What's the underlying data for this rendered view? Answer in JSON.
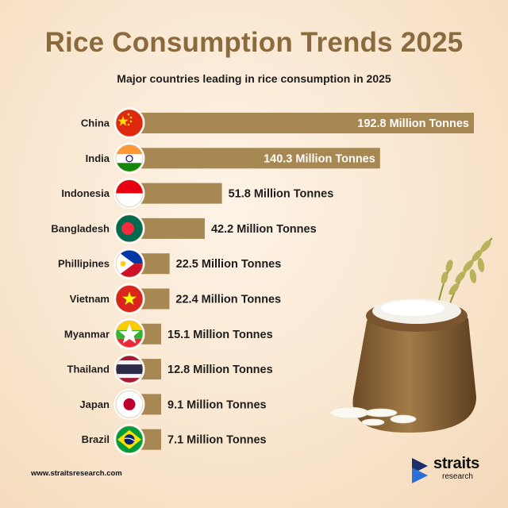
{
  "title": "Rice Consumption Trends 2025",
  "subtitle": "Major countries leading in rice consumption in 2025",
  "footer": {
    "url": "www.straitsresearch.com",
    "brand_name": "straits",
    "brand_sub": "research"
  },
  "colors": {
    "bar": "#a78752",
    "title": "#8b6b3e",
    "value_inside": "#ffffff",
    "value_outside": "#1d1d1d",
    "background": "#f9e6cf"
  },
  "chart_data": {
    "type": "bar",
    "orientation": "horizontal",
    "title": "Rice Consumption Trends 2025",
    "subtitle": "Major countries leading in rice consumption in 2025",
    "unit": "Million Tonnes",
    "categories": [
      "China",
      "India",
      "Indonesia",
      "Bangladesh",
      "Phillipines",
      "Vietnam",
      "Myanmar",
      "Thailand",
      "Japan",
      "Brazil"
    ],
    "values": [
      192.8,
      140.3,
      51.8,
      42.2,
      22.5,
      22.4,
      15.1,
      12.8,
      9.1,
      7.1
    ],
    "value_labels": [
      "192.8 Million Tonnes",
      "140.3 Million Tonnes",
      "51.8 Million Tonnes",
      "42.2 Million Tonnes",
      "22.5 Million Tonnes",
      "22.4 Million Tonnes",
      "15.1 Million Tonnes",
      "12.8 Million Tonnes",
      "9.1 Million Tonnes",
      "7.1 Million Tonnes"
    ],
    "flag_icons": [
      "china-flag-icon",
      "india-flag-icon",
      "indonesia-flag-icon",
      "bangladesh-flag-icon",
      "philippines-flag-icon",
      "vietnam-flag-icon",
      "myanmar-flag-icon",
      "thailand-flag-icon",
      "japan-flag-icon",
      "brazil-flag-icon"
    ],
    "xlim": [
      0,
      192.8
    ],
    "grid": false,
    "legend": "none"
  }
}
